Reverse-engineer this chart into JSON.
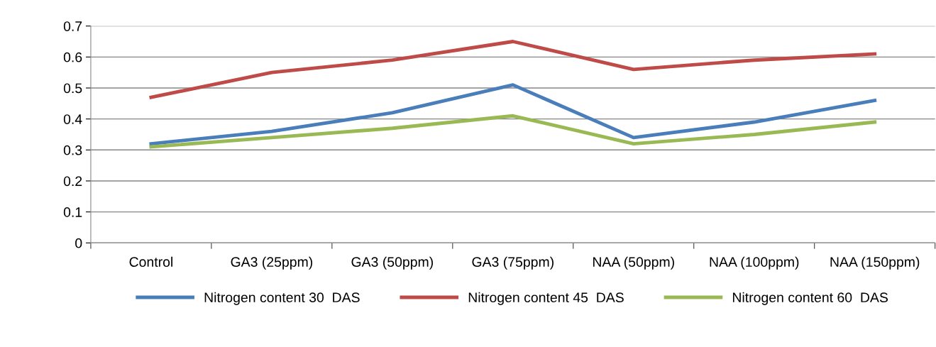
{
  "chart_data": {
    "type": "line",
    "categories": [
      "Control",
      "GA3 (25ppm)",
      "GA3 (50ppm)",
      "GA3 (75ppm)",
      "NAA (50ppm)",
      "NAA (100ppm)",
      "NAA (150ppm)"
    ],
    "series": [
      {
        "name": "Nitrogen content 30  DAS",
        "color": "#4a7ebb",
        "values": [
          0.32,
          0.36,
          0.42,
          0.51,
          0.34,
          0.39,
          0.46
        ]
      },
      {
        "name": "Nitrogen content 45  DAS",
        "color": "#be4b48",
        "values": [
          0.47,
          0.55,
          0.59,
          0.65,
          0.56,
          0.59,
          0.61
        ]
      },
      {
        "name": "Nitrogen content 60  DAS",
        "color": "#98b954",
        "values": [
          0.31,
          0.34,
          0.37,
          0.41,
          0.32,
          0.35,
          0.39
        ]
      }
    ],
    "ylim": [
      0,
      0.7
    ],
    "yticks": [
      0,
      0.1,
      0.2,
      0.3,
      0.4,
      0.5,
      0.6,
      0.7
    ],
    "grid": "y",
    "legend": "bottom",
    "marker": "none",
    "line_style": "solid"
  }
}
